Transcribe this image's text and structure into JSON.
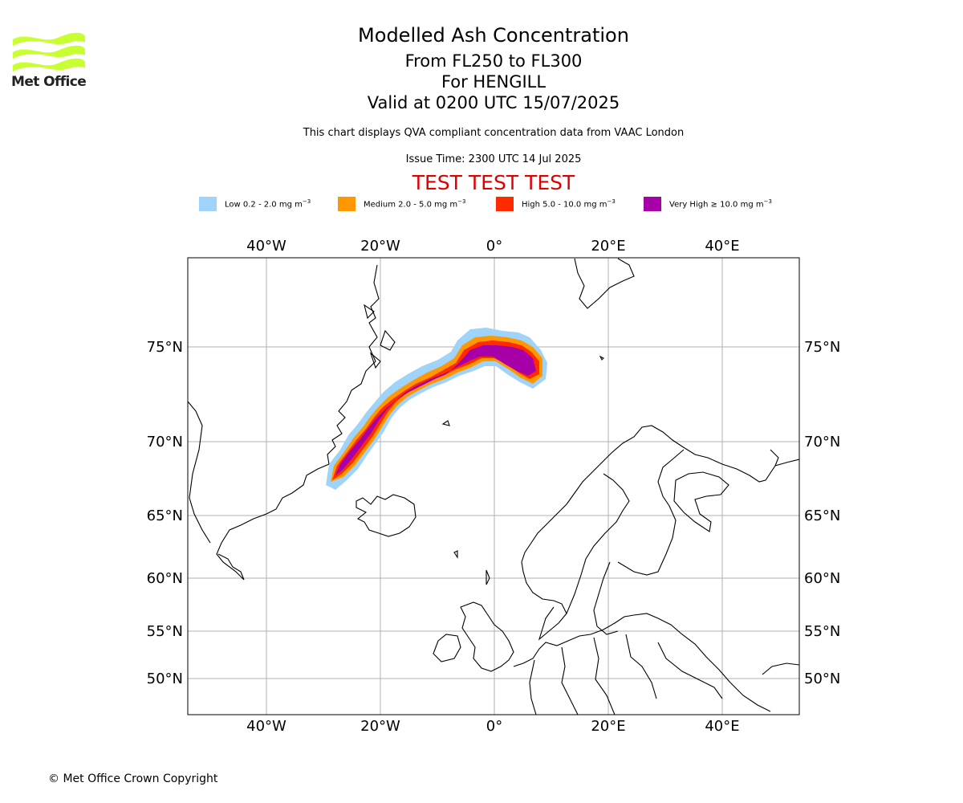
{
  "header": {
    "logo_text": "Met Office",
    "title": "Modelled Ash Concentration",
    "subtitle_levels": "From FL250 to FL300",
    "subtitle_volcano": "For HENGILL",
    "subtitle_valid": "Valid at 0200 UTC 15/07/2025",
    "disclaimer": "This chart displays QVA compliant concentration data from VAAC London",
    "issue_time": "Issue Time: 2300 UTC 14 Jul 2025",
    "test_banner": "TEST TEST TEST"
  },
  "legend": {
    "items": [
      {
        "label": "Low 0.2 - 2.0 mg m",
        "color": "#9fd3f9"
      },
      {
        "label": "Medium 2.0 - 5.0 mg m",
        "color": "#ff9800"
      },
      {
        "label": "High 5.0 - 10.0 mg m",
        "color": "#ff2a00"
      },
      {
        "label": "Very High ≥ 10.0 mg m",
        "color": "#a800a8"
      }
    ],
    "unit_exponent": "−3"
  },
  "map": {
    "lon_ticks": [
      "40°W",
      "20°W",
      "0°",
      "20°E",
      "40°E"
    ],
    "lat_ticks": [
      "75°N",
      "70°N",
      "65°N",
      "60°N",
      "55°N",
      "50°N"
    ],
    "grid": true
  },
  "footer": {
    "copyright": "© Met Office Crown Copyright"
  },
  "colors": {
    "low": "#9fd3f9",
    "medium": "#ff9800",
    "high": "#ff2a00",
    "very_high": "#a800a8",
    "test_banner": "#e00000",
    "logo": "#c8ff32"
  }
}
